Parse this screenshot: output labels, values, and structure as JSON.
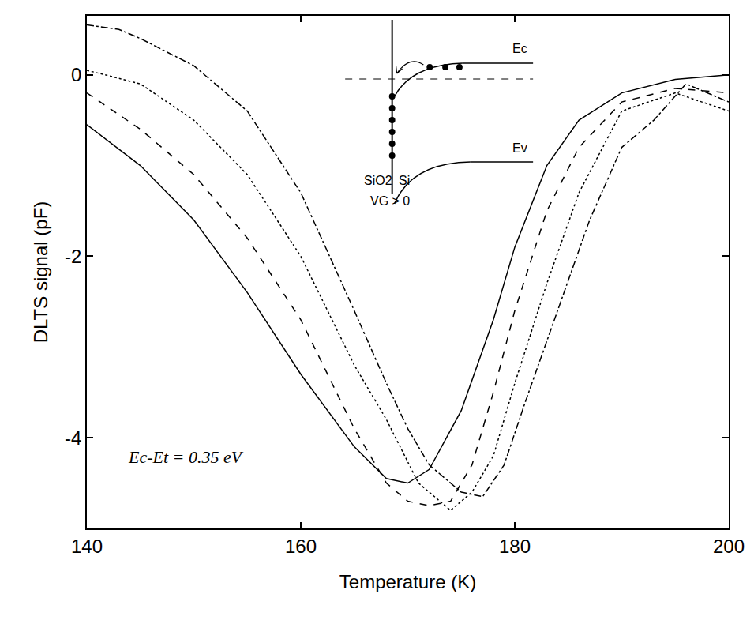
{
  "chart_data": {
    "type": "line",
    "x_label": "Temperature (K)",
    "y_label": "DLTS signal (pF)",
    "annotation": "Ec-Et = 0.35 eV",
    "inset": {
      "conduction_band": "Ec",
      "valence_band": "Ev",
      "oxide": "SiO2",
      "semiconductor": "Si",
      "bias": "VG > 0"
    },
    "xlim": [
      140,
      200
    ],
    "ylim": [
      -5,
      0.65
    ],
    "xticks": [
      140,
      160,
      180,
      200
    ],
    "yticks": [
      0,
      -2,
      -4
    ],
    "grid": false,
    "series": [
      {
        "color": "#000000",
        "line_style": "solid",
        "x": [
          140,
          145,
          150,
          155,
          160,
          165,
          168,
          170,
          172,
          175,
          178,
          180,
          183,
          186,
          190,
          195,
          200
        ],
        "values": [
          -0.55,
          -1.0,
          -1.6,
          -2.4,
          -3.3,
          -4.1,
          -4.45,
          -4.5,
          -4.35,
          -3.7,
          -2.7,
          -1.9,
          -1.0,
          -0.5,
          -0.2,
          -0.05,
          0
        ]
      },
      {
        "color": "#000000",
        "line_style": "dash",
        "x": [
          140,
          145,
          150,
          155,
          160,
          165,
          168,
          170,
          172,
          174,
          176,
          178,
          180,
          183,
          186,
          190,
          195,
          200
        ],
        "values": [
          -0.2,
          -0.6,
          -1.1,
          -1.8,
          -2.7,
          -3.9,
          -4.5,
          -4.7,
          -4.75,
          -4.7,
          -4.3,
          -3.5,
          -2.6,
          -1.5,
          -0.8,
          -0.3,
          -0.15,
          -0.2
        ]
      },
      {
        "color": "#000000",
        "line_style": "dot",
        "x": [
          140,
          145,
          150,
          155,
          160,
          165,
          168,
          171,
          174,
          176,
          178,
          180,
          183,
          186,
          190,
          195,
          200
        ],
        "values": [
          0.05,
          -0.1,
          -0.5,
          -1.1,
          -2.0,
          -3.2,
          -3.8,
          -4.5,
          -4.8,
          -4.6,
          -4.2,
          -3.4,
          -2.3,
          -1.3,
          -0.4,
          -0.2,
          -0.4
        ]
      },
      {
        "color": "#000000",
        "line_style": "dashdot",
        "x": [
          140,
          143,
          145,
          150,
          155,
          160,
          165,
          168,
          170,
          172,
          175,
          177,
          179,
          181,
          184,
          187,
          190,
          193,
          196,
          200
        ],
        "values": [
          0.55,
          0.5,
          0.4,
          0.1,
          -0.4,
          -1.3,
          -2.6,
          -3.4,
          -3.9,
          -4.3,
          -4.6,
          -4.65,
          -4.3,
          -3.6,
          -2.6,
          -1.6,
          -0.8,
          -0.5,
          -0.1,
          -0.3
        ]
      }
    ]
  }
}
